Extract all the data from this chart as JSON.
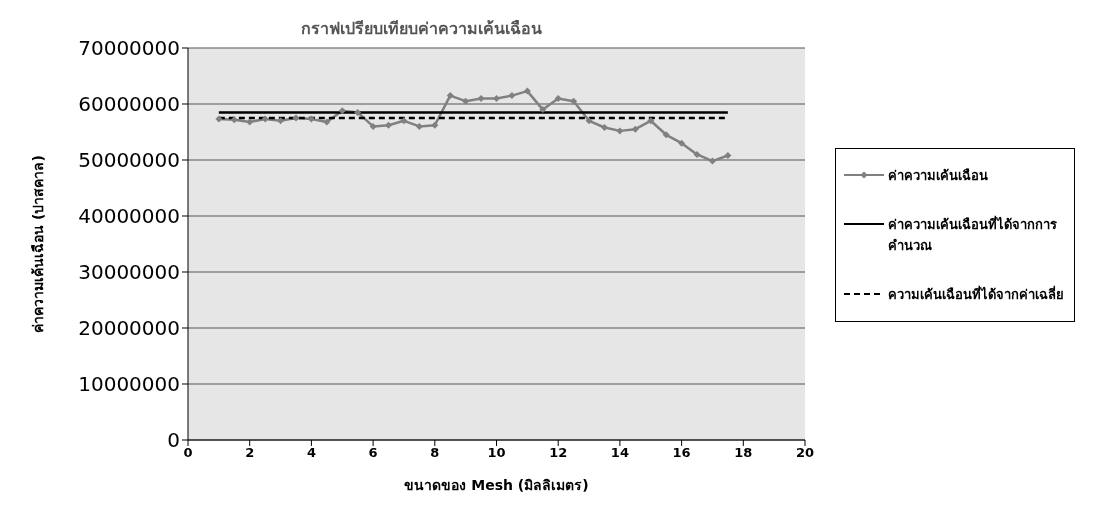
{
  "chart_data": {
    "type": "line",
    "title": "กราฟเปรียบเทียบค่าความเค้นเฉือน",
    "xlabel": "ขนาดของ Mesh (มิลลิเมตร)",
    "ylabel": "ค่าความเค้นเฉือน (ปาสคาล)",
    "xlim": [
      0,
      20
    ],
    "xticks": [
      0,
      2,
      4,
      6,
      8,
      10,
      12,
      14,
      16,
      18,
      20
    ],
    "ylim": [
      0,
      70000000
    ],
    "yticks": [
      0,
      10000000,
      20000000,
      30000000,
      40000000,
      50000000,
      60000000,
      70000000
    ],
    "grid": "y",
    "legend": "right",
    "series": [
      {
        "name": "ค่าความเค้นเฉือน",
        "color": "#808080",
        "marker": "diamond",
        "line_style": "solid",
        "x": [
          1,
          1.5,
          2,
          2.5,
          3,
          3.5,
          4,
          4.5,
          5,
          5.5,
          6,
          6.5,
          7,
          7.5,
          8,
          8.5,
          9,
          9.5,
          10,
          10.5,
          11,
          11.5,
          12,
          12.5,
          13,
          13.5,
          14,
          14.5,
          15,
          15.5,
          16,
          16.5,
          17,
          17.5
        ],
        "values": [
          57300000,
          57200000,
          56800000,
          57300000,
          57000000,
          57500000,
          57300000,
          56800000,
          58800000,
          58500000,
          56000000,
          56200000,
          57000000,
          56000000,
          56200000,
          61500000,
          60500000,
          61000000,
          61000000,
          61500000,
          62300000,
          59000000,
          61000000,
          60500000,
          57000000,
          55800000,
          55200000,
          55500000,
          57000000,
          54500000,
          53000000,
          51000000,
          49800000,
          50800000
        ]
      },
      {
        "name": "ค่าความเค้นเฉือนที่ได้จากการคำนวณ",
        "color": "#000000",
        "marker": "none",
        "line_style": "solid",
        "x": [
          1,
          17.5
        ],
        "values": [
          58500000,
          58500000
        ]
      },
      {
        "name": "ความเค้นเฉือนที่ได้จากค่าเฉลี่ย",
        "color": "#000000",
        "marker": "none",
        "line_style": "dashed",
        "x": [
          1,
          17.5
        ],
        "values": [
          57500000,
          57500000
        ]
      }
    ]
  }
}
